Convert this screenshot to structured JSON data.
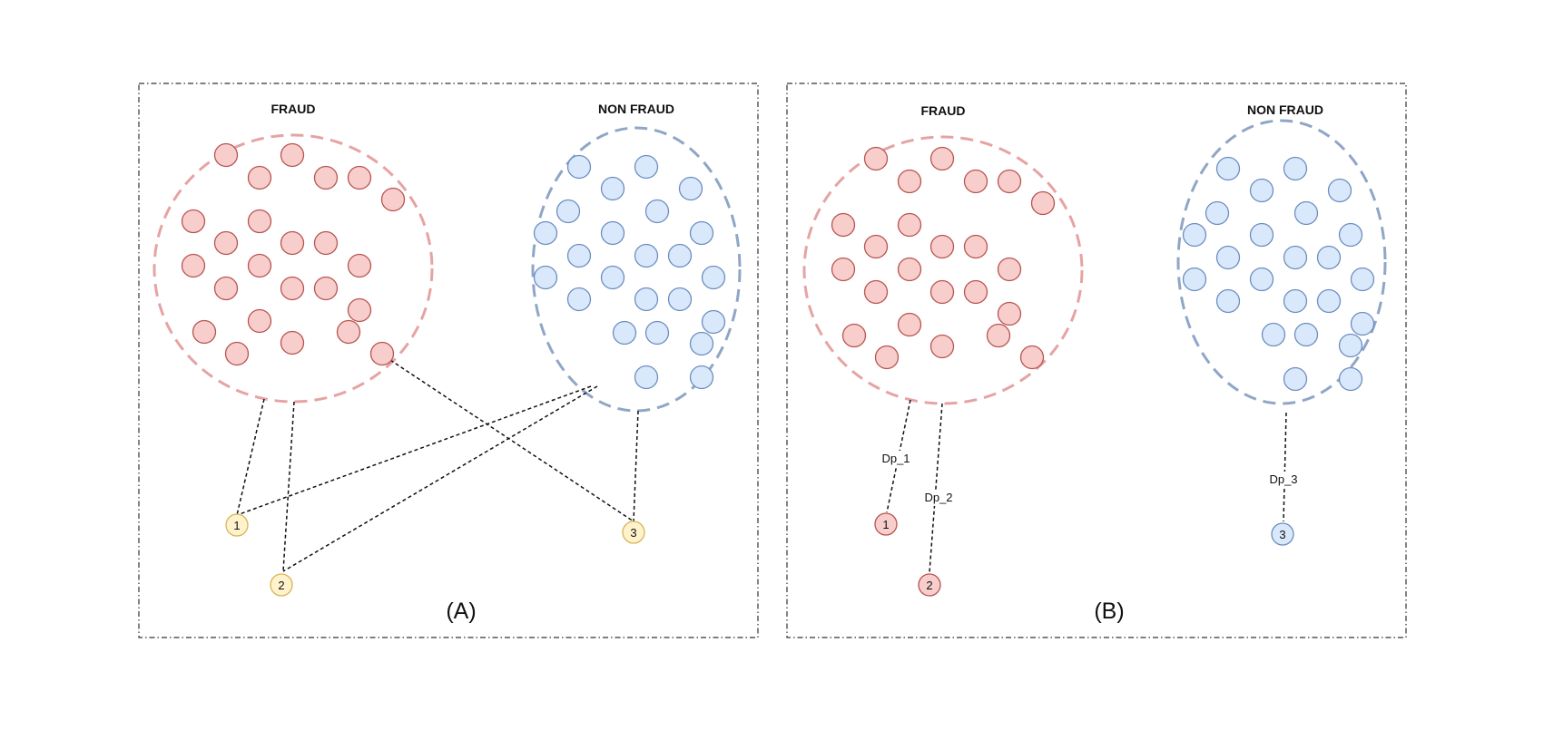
{
  "colors": {
    "fraud_fill": "#f8cecc",
    "fraud_stroke": "#b85450",
    "fraud_ring": "#e6a3a3",
    "nonfraud_fill": "#dae8fc",
    "nonfraud_stroke": "#6c8ebf",
    "nonfraud_ring": "#8fa6c6",
    "query_fill": "#fff2cc",
    "query_stroke": "#d6b656",
    "frame": "#333333",
    "connector": "#111111"
  },
  "panel_a": {
    "label": "(A)",
    "fraud_title": "FRAUD",
    "nonfraud_title": "NON FRAUD",
    "query_points": [
      {
        "label": "1",
        "class": "unlabeled",
        "linked_to": [
          "FRAUD",
          "NON FRAUD"
        ]
      },
      {
        "label": "2",
        "class": "unlabeled",
        "linked_to": [
          "FRAUD",
          "NON FRAUD"
        ]
      },
      {
        "label": "3",
        "class": "unlabeled",
        "linked_to": [
          "FRAUD",
          "NON FRAUD"
        ]
      }
    ]
  },
  "panel_b": {
    "label": "(B)",
    "fraud_title": "FRAUD",
    "nonfraud_title": "NON FRAUD",
    "query_points": [
      {
        "label": "1",
        "class": "FRAUD",
        "edge_label": "Dp_1"
      },
      {
        "label": "2",
        "class": "FRAUD",
        "edge_label": "Dp_2"
      },
      {
        "label": "3",
        "class": "NON FRAUD",
        "edge_label": "Dp_3"
      }
    ]
  }
}
